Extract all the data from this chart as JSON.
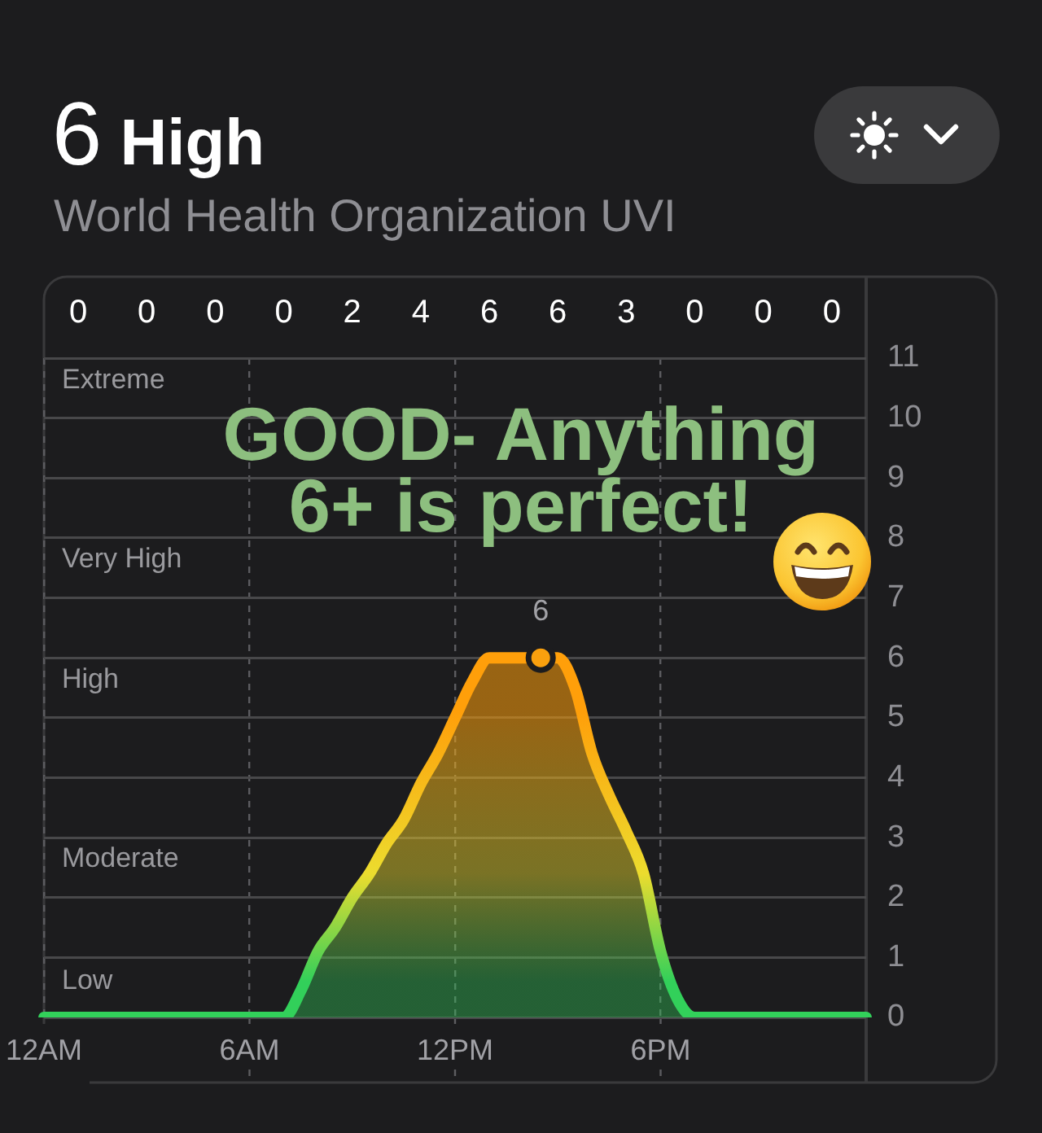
{
  "chart_data": [
    {
      "type": "other",
      "categories": [
        null,
        null,
        null,
        null,
        null,
        null,
        null,
        null,
        null,
        null,
        null,
        null
      ],
      "values": [
        0,
        0,
        0,
        0,
        2,
        4,
        6,
        6,
        3,
        0,
        0,
        0
      ],
      "data_labels": true
    },
    {
      "type": "area",
      "title": "6 High",
      "subtitle": "World Health Organization UVI",
      "categories": [
        "12AM",
        null,
        null,
        null,
        null,
        null,
        null,
        null,
        null,
        null,
        null,
        null,
        "6AM",
        null,
        null,
        null,
        null,
        null,
        null,
        null,
        null,
        null,
        null,
        null,
        "12PM",
        null,
        null,
        null,
        null,
        null,
        null,
        null,
        null,
        null,
        null,
        null,
        "6PM",
        null,
        null,
        null,
        null,
        null,
        null,
        null,
        null,
        null,
        null,
        null,
        null
      ],
      "ylim": [
        0,
        11
      ],
      "yticks": [
        0,
        1,
        2,
        3,
        4,
        5,
        6,
        7,
        8,
        9,
        10,
        11
      ],
      "grid": true,
      "series": [
        {
          "color": "#32d05a",
          "values": [
            0,
            0,
            0,
            0,
            0,
            0,
            0,
            0,
            0,
            0,
            0,
            0,
            0,
            0,
            0,
            0.45,
            1.1,
            1.5,
            2,
            2.4,
            2.9,
            3.3,
            3.9,
            4.4,
            5,
            5.6,
            6,
            6,
            6,
            6,
            6,
            5.5,
            4.4,
            3.7,
            3.1,
            2.4,
            1.1,
            0.3,
            0,
            0,
            0,
            0,
            0,
            0,
            0,
            0,
            0,
            0,
            0
          ]
        },
        {
          "type": "scatter",
          "color": "#f9a00e",
          "marker": "circle",
          "values": [
            null,
            null,
            null,
            null,
            null,
            null,
            null,
            null,
            null,
            null,
            null,
            null,
            null,
            null,
            null,
            null,
            null,
            null,
            null,
            null,
            null,
            null,
            null,
            null,
            null,
            null,
            null,
            null,
            null,
            6,
            null,
            null,
            null,
            null,
            null,
            null,
            null,
            null,
            null,
            null,
            null,
            null,
            null,
            null,
            null,
            null,
            null,
            null,
            null
          ],
          "value_labels": [
            null,
            null,
            null,
            null,
            null,
            null,
            null,
            null,
            null,
            null,
            null,
            null,
            null,
            null,
            null,
            null,
            null,
            null,
            null,
            null,
            null,
            null,
            null,
            null,
            null,
            null,
            null,
            null,
            null,
            "6",
            null,
            null,
            null,
            null,
            null,
            null,
            null,
            null,
            null,
            null,
            null,
            null,
            null,
            null,
            null,
            null,
            null,
            null,
            null
          ]
        }
      ],
      "annotations": [
        "GOOD- Anything 6+ is perfect!",
        "Extreme",
        "Very High",
        "High",
        "Moderate",
        "Low"
      ]
    }
  ]
}
